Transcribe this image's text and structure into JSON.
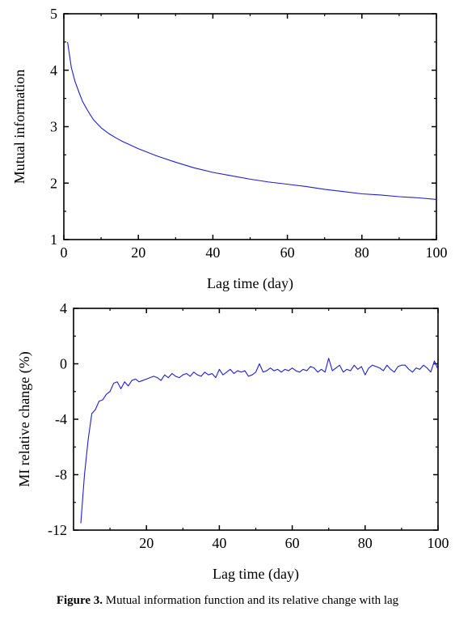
{
  "chart_data": [
    {
      "type": "line",
      "xlabel": "Lag time (day)",
      "ylabel": "Mutual information",
      "xlim": [
        0,
        100
      ],
      "ylim": [
        1,
        5
      ],
      "xticks": [
        0,
        20,
        40,
        60,
        80,
        100
      ],
      "yticks": [
        1,
        2,
        3,
        4,
        5
      ],
      "grid": false,
      "line_color": "#1f1fd0",
      "series": [
        {
          "x": [
            1,
            2,
            3,
            4,
            5,
            6,
            7,
            8,
            9,
            10,
            12,
            14,
            16,
            18,
            20,
            25,
            30,
            35,
            40,
            45,
            50,
            55,
            60,
            65,
            70,
            75,
            80,
            85,
            90,
            95,
            100
          ],
          "y": [
            4.5,
            4.05,
            3.8,
            3.62,
            3.45,
            3.33,
            3.22,
            3.12,
            3.05,
            2.98,
            2.88,
            2.8,
            2.73,
            2.67,
            2.61,
            2.48,
            2.37,
            2.27,
            2.19,
            2.13,
            2.07,
            2.02,
            1.98,
            1.94,
            1.89,
            1.85,
            1.81,
            1.79,
            1.76,
            1.74,
            1.71
          ]
        }
      ]
    },
    {
      "type": "line",
      "xlabel": "Lag time (day)",
      "ylabel": "MI relative change (%)",
      "xlim": [
        0,
        100
      ],
      "ylim": [
        -12,
        4
      ],
      "xticks": [
        20,
        40,
        60,
        80,
        100
      ],
      "yticks": [
        4,
        0,
        -4,
        -8,
        -12
      ],
      "grid": false,
      "line_color": "#1f1fd0",
      "series": [
        {
          "x": [
            2,
            3,
            4,
            5,
            6,
            7,
            8,
            9,
            10,
            11,
            12,
            13,
            14,
            15,
            16,
            17,
            18,
            19,
            20,
            21,
            22,
            23,
            24,
            25,
            26,
            27,
            28,
            29,
            30,
            31,
            32,
            33,
            34,
            35,
            36,
            37,
            38,
            39,
            40,
            41,
            42,
            43,
            44,
            45,
            46,
            47,
            48,
            49,
            50,
            51,
            52,
            53,
            54,
            55,
            56,
            57,
            58,
            59,
            60,
            61,
            62,
            63,
            64,
            65,
            66,
            67,
            68,
            69,
            70,
            71,
            72,
            73,
            74,
            75,
            76,
            77,
            78,
            79,
            80,
            81,
            82,
            83,
            84,
            85,
            86,
            87,
            88,
            89,
            90,
            91,
            92,
            93,
            94,
            95,
            96,
            97,
            98,
            99,
            100
          ],
          "y": [
            -11.5,
            -8.0,
            -5.5,
            -3.6,
            -3.3,
            -2.7,
            -2.6,
            -2.2,
            -2.0,
            -1.4,
            -1.3,
            -1.8,
            -1.3,
            -1.6,
            -1.2,
            -1.1,
            -1.3,
            -1.2,
            -1.1,
            -1.0,
            -0.9,
            -1.0,
            -1.2,
            -0.8,
            -1.0,
            -0.7,
            -0.9,
            -1.0,
            -0.8,
            -0.7,
            -0.9,
            -0.6,
            -0.8,
            -0.9,
            -0.6,
            -0.8,
            -0.7,
            -1.0,
            -0.4,
            -0.8,
            -0.6,
            -0.4,
            -0.7,
            -0.5,
            -0.6,
            -0.5,
            -0.9,
            -0.8,
            -0.6,
            0.0,
            -0.6,
            -0.5,
            -0.3,
            -0.5,
            -0.4,
            -0.6,
            -0.4,
            -0.5,
            -0.3,
            -0.5,
            -0.6,
            -0.4,
            -0.5,
            -0.2,
            -0.3,
            -0.6,
            -0.4,
            -0.6,
            0.4,
            -0.5,
            -0.3,
            -0.1,
            -0.6,
            -0.4,
            -0.5,
            -0.1,
            -0.4,
            -0.2,
            -0.8,
            -0.3,
            -0.1,
            -0.2,
            -0.3,
            -0.5,
            -0.1,
            -0.4,
            -0.6,
            -0.2,
            -0.1,
            -0.1,
            -0.4,
            -0.6,
            -0.3,
            -0.4,
            -0.1,
            -0.3,
            -0.6,
            0.2,
            -0.4
          ]
        }
      ]
    }
  ],
  "caption": {
    "label": "Figure 3.",
    "text": "Mutual information function and its relative change with lag"
  }
}
